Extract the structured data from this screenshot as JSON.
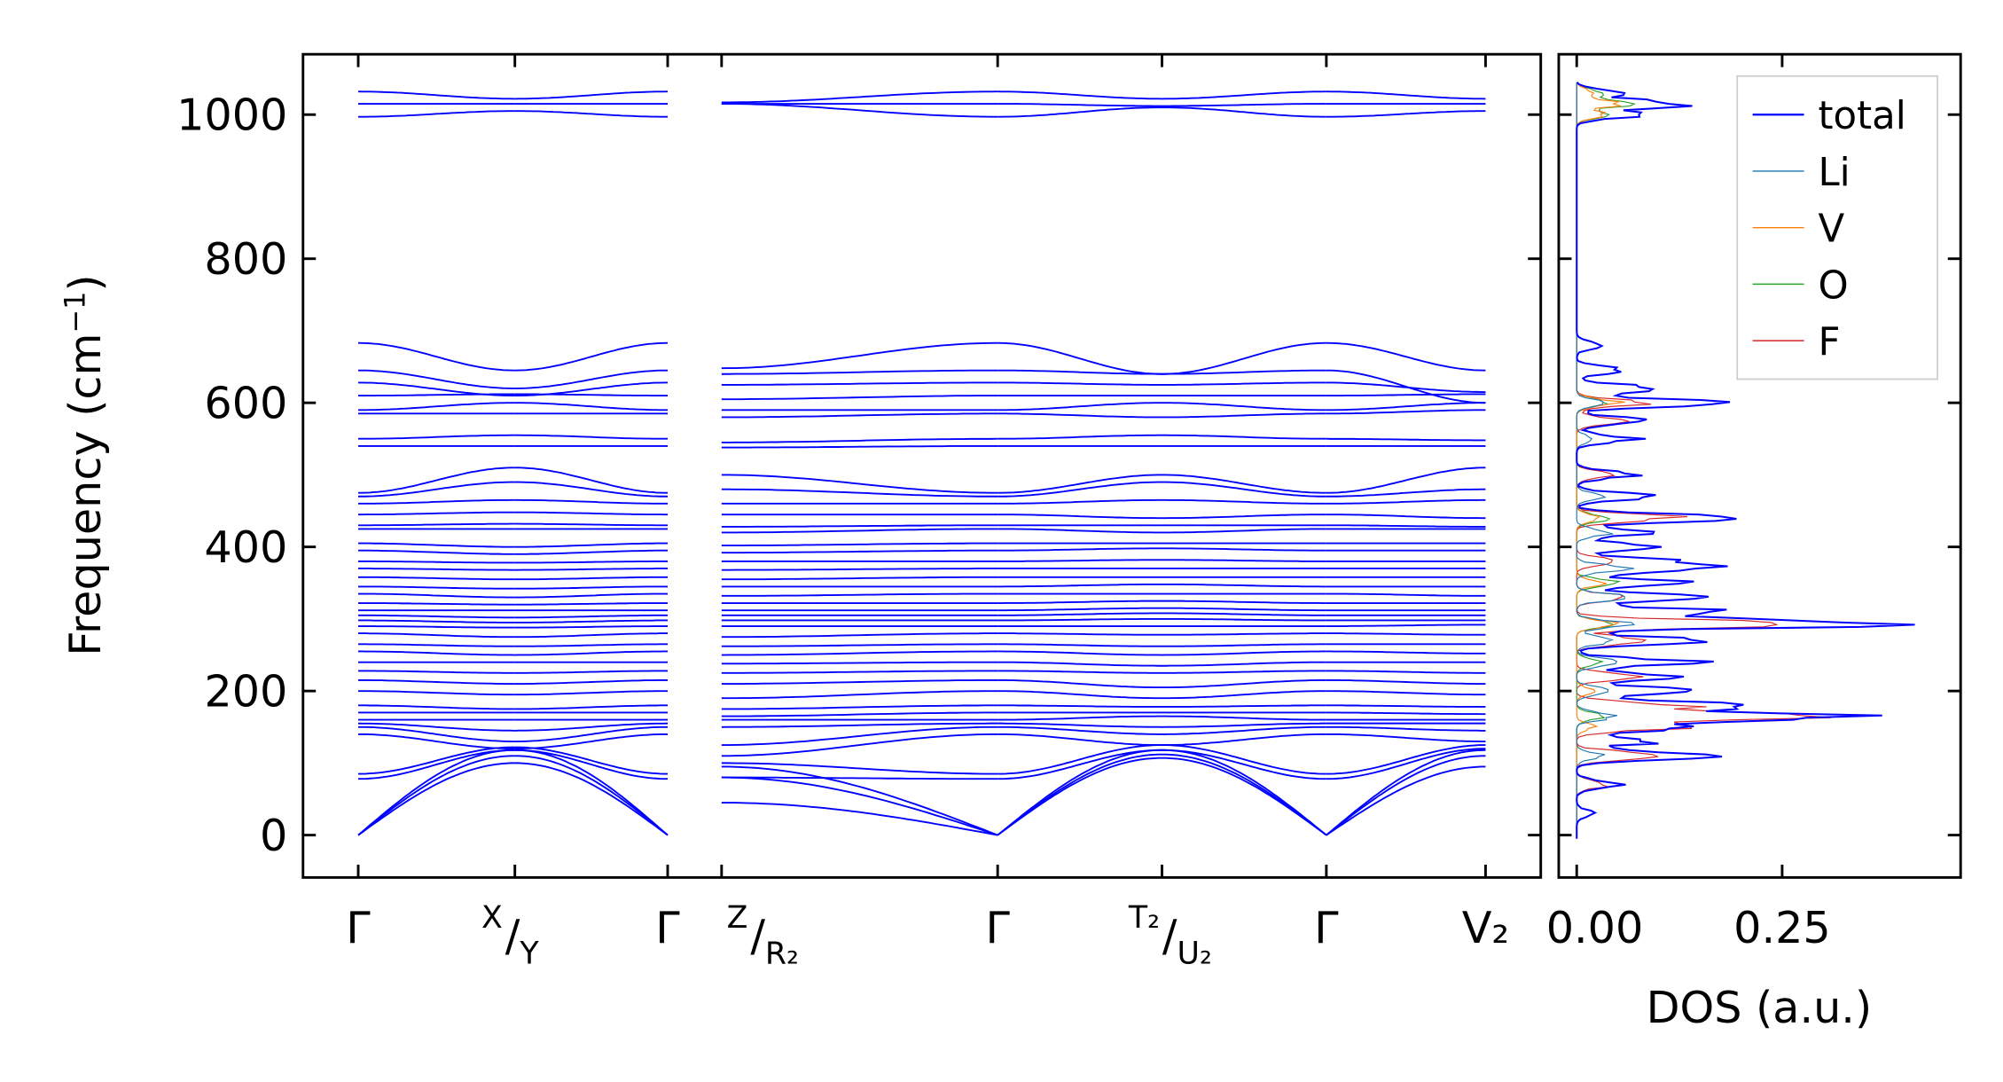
{
  "chart_data": [
    {
      "type": "line",
      "title": "",
      "ylabel": "Frequency (cm⁻¹)",
      "ylabel_main": "Frequency (cm",
      "ylabel_sup": "−1",
      "ylabel_close": ")",
      "ylim": [
        -60,
        1085
      ],
      "yticks": [
        0,
        200,
        400,
        600,
        800,
        1000
      ],
      "grid": false,
      "line_color": "#0000ff",
      "kpoints": [
        {
          "pre": "Γ"
        },
        {
          "sup": "X",
          "sub": "Y"
        },
        {
          "pre": "Γ"
        },
        {
          "sup": "Z",
          "sub": "R₂"
        },
        {
          "pre": "Γ"
        },
        {
          "sup": "T₂",
          "sub": "U₂"
        },
        {
          "pre": "Γ"
        },
        {
          "pre": "V₂"
        }
      ],
      "segments": [
        [
          0,
          1
        ],
        [
          1,
          2
        ],
        [
          3,
          4
        ],
        [
          4,
          5
        ],
        [
          5,
          6
        ],
        [
          6,
          7
        ]
      ],
      "bands": [
        [
          0,
          100,
          0,
          45,
          0,
          107,
          0,
          95
        ],
        [
          0,
          110,
          0,
          80,
          0,
          112,
          0,
          110
        ],
        [
          0,
          118,
          0,
          95,
          0,
          118,
          0,
          118
        ],
        [
          78,
          118,
          78,
          80,
          78,
          118,
          78,
          120
        ],
        [
          85,
          122,
          85,
          100,
          85,
          125,
          85,
          125
        ],
        [
          140,
          120,
          140,
          110,
          140,
          125,
          140,
          130
        ],
        [
          150,
          130,
          150,
          125,
          150,
          140,
          150,
          145
        ],
        [
          155,
          145,
          155,
          150,
          155,
          150,
          155,
          155
        ],
        [
          160,
          160,
          160,
          160,
          160,
          165,
          160,
          160
        ],
        [
          170,
          170,
          170,
          165,
          170,
          170,
          170,
          168
        ],
        [
          180,
          175,
          180,
          175,
          180,
          178,
          180,
          178
        ],
        [
          200,
          195,
          200,
          190,
          200,
          190,
          200,
          195
        ],
        [
          215,
          210,
          215,
          210,
          215,
          205,
          215,
          210
        ],
        [
          228,
          225,
          228,
          225,
          228,
          225,
          228,
          225
        ],
        [
          240,
          240,
          240,
          238,
          240,
          235,
          240,
          240
        ],
        [
          255,
          250,
          255,
          250,
          255,
          250,
          255,
          252
        ],
        [
          265,
          262,
          265,
          262,
          265,
          262,
          265,
          265
        ],
        [
          280,
          275,
          280,
          275,
          280,
          278,
          280,
          278
        ],
        [
          290,
          288,
          290,
          290,
          290,
          290,
          290,
          292
        ],
        [
          298,
          295,
          298,
          298,
          298,
          300,
          298,
          298
        ],
        [
          305,
          302,
          305,
          305,
          305,
          308,
          305,
          305
        ],
        [
          312,
          312,
          312,
          312,
          312,
          315,
          312,
          312
        ],
        [
          322,
          320,
          322,
          322,
          322,
          325,
          322,
          322
        ],
        [
          335,
          330,
          335,
          332,
          335,
          335,
          335,
          332
        ],
        [
          345,
          342,
          345,
          345,
          345,
          348,
          345,
          345
        ],
        [
          358,
          355,
          358,
          355,
          358,
          358,
          358,
          358
        ],
        [
          370,
          368,
          370,
          368,
          370,
          370,
          370,
          370
        ],
        [
          380,
          378,
          380,
          380,
          380,
          382,
          380,
          380
        ],
        [
          395,
          390,
          395,
          392,
          395,
          398,
          395,
          395
        ],
        [
          405,
          400,
          405,
          402,
          405,
          405,
          405,
          405
        ],
        [
          425,
          425,
          425,
          420,
          425,
          420,
          425,
          425
        ],
        [
          430,
          432,
          430,
          428,
          430,
          430,
          430,
          428
        ],
        [
          445,
          448,
          445,
          445,
          445,
          440,
          445,
          440
        ],
        [
          460,
          465,
          460,
          460,
          460,
          465,
          460,
          465
        ],
        [
          470,
          490,
          470,
          480,
          470,
          490,
          470,
          480
        ],
        [
          475,
          510,
          475,
          500,
          475,
          500,
          475,
          510
        ],
        [
          540,
          540,
          540,
          538,
          540,
          540,
          540,
          540
        ],
        [
          550,
          555,
          550,
          545,
          550,
          555,
          550,
          548
        ],
        [
          585,
          585,
          585,
          580,
          585,
          580,
          585,
          590
        ],
        [
          590,
          600,
          590,
          590,
          590,
          600,
          590,
          600
        ],
        [
          610,
          612,
          610,
          605,
          610,
          610,
          610,
          612
        ],
        [
          628,
          610,
          628,
          625,
          628,
          625,
          628,
          615
        ],
        [
          645,
          620,
          645,
          640,
          645,
          640,
          645,
          600
        ],
        [
          683,
          645,
          683,
          648,
          683,
          640,
          683,
          645
        ],
        [
          997,
          1005,
          997,
          1015,
          997,
          1010,
          997,
          1005
        ],
        [
          1015,
          1015,
          1015,
          1015,
          1015,
          1012,
          1015,
          1015
        ],
        [
          1032,
          1022,
          1032,
          1017,
          1032,
          1022,
          1032,
          1022
        ]
      ]
    },
    {
      "type": "line",
      "title": "",
      "xlabel": "DOS (a.u.)",
      "xlim": [
        -0.022,
        0.465
      ],
      "xticks": [
        "0.00",
        "0.25"
      ],
      "xtick_values": [
        0,
        0.25
      ],
      "ylim": [
        -60,
        1085
      ],
      "legend_position": "top-right",
      "series": [
        {
          "name": "total",
          "color": "#0000ff",
          "peaks": [
            [
              30,
              0.02
            ],
            [
              70,
              0.06
            ],
            [
              110,
              0.19
            ],
            [
              130,
              0.1
            ],
            [
              150,
              0.16
            ],
            [
              165,
              0.37
            ],
            [
              180,
              0.2
            ],
            [
              200,
              0.15
            ],
            [
              220,
              0.12
            ],
            [
              240,
              0.14
            ],
            [
              270,
              0.16
            ],
            [
              293,
              0.44
            ],
            [
              310,
              0.18
            ],
            [
              330,
              0.14
            ],
            [
              350,
              0.15
            ],
            [
              370,
              0.16
            ],
            [
              380,
              0.12
            ],
            [
              400,
              0.1
            ],
            [
              420,
              0.09
            ],
            [
              440,
              0.24
            ],
            [
              470,
              0.09
            ],
            [
              500,
              0.07
            ],
            [
              550,
              0.07
            ],
            [
              575,
              0.09
            ],
            [
              600,
              0.19
            ],
            [
              620,
              0.1
            ],
            [
              645,
              0.06
            ],
            [
              680,
              0.03
            ],
            [
              1000,
              0.08
            ],
            [
              1015,
              0.13
            ],
            [
              1030,
              0.06
            ]
          ]
        },
        {
          "name": "Li",
          "color": "#1f77b4",
          "peaks": [
            [
              110,
              0.03
            ],
            [
              165,
              0.05
            ],
            [
              200,
              0.05
            ],
            [
              240,
              0.06
            ],
            [
              270,
              0.05
            ],
            [
              293,
              0.06
            ],
            [
              330,
              0.06
            ],
            [
              370,
              0.06
            ],
            [
              420,
              0.04
            ],
            [
              470,
              0.03
            ],
            [
              550,
              0.02
            ],
            [
              600,
              0.03
            ]
          ]
        },
        {
          "name": "V",
          "color": "#ff7f0e",
          "peaks": [
            [
              150,
              0.02
            ],
            [
              200,
              0.02
            ],
            [
              293,
              0.05
            ],
            [
              350,
              0.03
            ],
            [
              440,
              0.03
            ],
            [
              600,
              0.05
            ],
            [
              1000,
              0.03
            ],
            [
              1015,
              0.05
            ],
            [
              1030,
              0.02
            ]
          ]
        },
        {
          "name": "O",
          "color": "#2ca02c",
          "peaks": [
            [
              165,
              0.03
            ],
            [
              240,
              0.03
            ],
            [
              293,
              0.04
            ],
            [
              350,
              0.05
            ],
            [
              440,
              0.04
            ],
            [
              600,
              0.04
            ],
            [
              1000,
              0.04
            ],
            [
              1015,
              0.06
            ],
            [
              1030,
              0.03
            ]
          ]
        },
        {
          "name": "F",
          "color": "#d62728",
          "peaks": [
            [
              70,
              0.04
            ],
            [
              110,
              0.13
            ],
            [
              150,
              0.12
            ],
            [
              165,
              0.28
            ],
            [
              180,
              0.13
            ],
            [
              220,
              0.07
            ],
            [
              270,
              0.1
            ],
            [
              293,
              0.28
            ],
            [
              330,
              0.06
            ],
            [
              380,
              0.05
            ],
            [
              440,
              0.12
            ],
            [
              500,
              0.04
            ],
            [
              575,
              0.06
            ],
            [
              600,
              0.08
            ]
          ]
        }
      ]
    }
  ]
}
